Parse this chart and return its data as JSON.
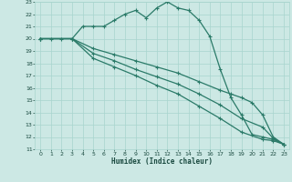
{
  "xlabel": "Humidex (Indice chaleur)",
  "bg_color": "#cce8e4",
  "grid_color": "#a8d4ce",
  "line_color": "#2a7a68",
  "xlim": [
    -0.5,
    23.5
  ],
  "ylim": [
    11,
    23
  ],
  "xticks": [
    0,
    1,
    2,
    3,
    4,
    5,
    6,
    7,
    8,
    9,
    10,
    11,
    12,
    13,
    14,
    15,
    16,
    17,
    18,
    19,
    20,
    21,
    22,
    23
  ],
  "yticks": [
    11,
    12,
    13,
    14,
    15,
    16,
    17,
    18,
    19,
    20,
    21,
    22,
    23
  ],
  "lines": [
    {
      "x": [
        0,
        1,
        2,
        3,
        4,
        5,
        6,
        7,
        8,
        9,
        10,
        11,
        12,
        13,
        14,
        15,
        16,
        17,
        18,
        19,
        20,
        21,
        22,
        23
      ],
      "y": [
        20,
        20,
        20,
        20,
        21,
        21,
        21,
        21.5,
        22,
        22.3,
        21.7,
        22.5,
        23,
        22.5,
        22.3,
        21.5,
        20.2,
        17.5,
        15.2,
        13.8,
        12.2,
        12.0,
        11.8,
        11.4
      ]
    },
    {
      "x": [
        0,
        3,
        5,
        7,
        9,
        11,
        13,
        15,
        17,
        18,
        19,
        20,
        21,
        22,
        23
      ],
      "y": [
        20,
        20,
        19.2,
        18.7,
        18.2,
        17.7,
        17.2,
        16.5,
        15.8,
        15.5,
        15.2,
        14.8,
        13.8,
        12.0,
        11.4
      ]
    },
    {
      "x": [
        0,
        3,
        5,
        7,
        9,
        11,
        13,
        15,
        17,
        19,
        21,
        22,
        23
      ],
      "y": [
        20,
        20,
        18.8,
        18.2,
        17.5,
        16.9,
        16.3,
        15.5,
        14.6,
        13.5,
        12.8,
        11.9,
        11.4
      ]
    },
    {
      "x": [
        0,
        3,
        5,
        7,
        9,
        11,
        13,
        15,
        17,
        19,
        21,
        22,
        23
      ],
      "y": [
        20,
        20,
        18.4,
        17.7,
        17.0,
        16.2,
        15.5,
        14.5,
        13.5,
        12.4,
        11.8,
        11.7,
        11.4
      ]
    }
  ]
}
